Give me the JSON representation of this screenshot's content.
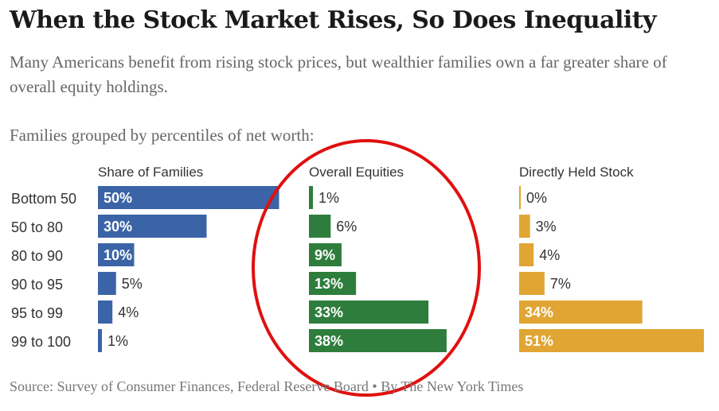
{
  "title": "When the Stock Market Rises, So Does Inequality",
  "subtitle": "Many Americans benefit from rising stock prices, but wealthier families own a far greater share of overall equity holdings.",
  "grouping_label": "Families grouped by percentiles of net worth:",
  "source": "Source: Survey of Consumer Finances, Federal Reserve Board • By The New York Times",
  "chart_data": {
    "type": "bar",
    "orientation": "horizontal",
    "title": "When the Stock Market Rises, So Does Inequality",
    "categories": [
      "Bottom 50",
      "50 to 80",
      "80 to 90",
      "90 to 95",
      "95 to 99",
      "99 to 100"
    ],
    "unit": "%",
    "series": [
      {
        "name": "Share of Families",
        "values": [
          50,
          30,
          10,
          5,
          4,
          1
        ],
        "color": "#3b64a7"
      },
      {
        "name": "Overall Equities",
        "values": [
          1,
          6,
          9,
          13,
          33,
          38
        ],
        "color": "#2e7d3c"
      },
      {
        "name": "Directly Held Stock",
        "values": [
          0,
          3,
          4,
          7,
          34,
          51
        ],
        "color": "#e0a533"
      }
    ],
    "annotation": {
      "type": "circle",
      "color": "#e01010",
      "target_series": "Overall Equities"
    }
  }
}
